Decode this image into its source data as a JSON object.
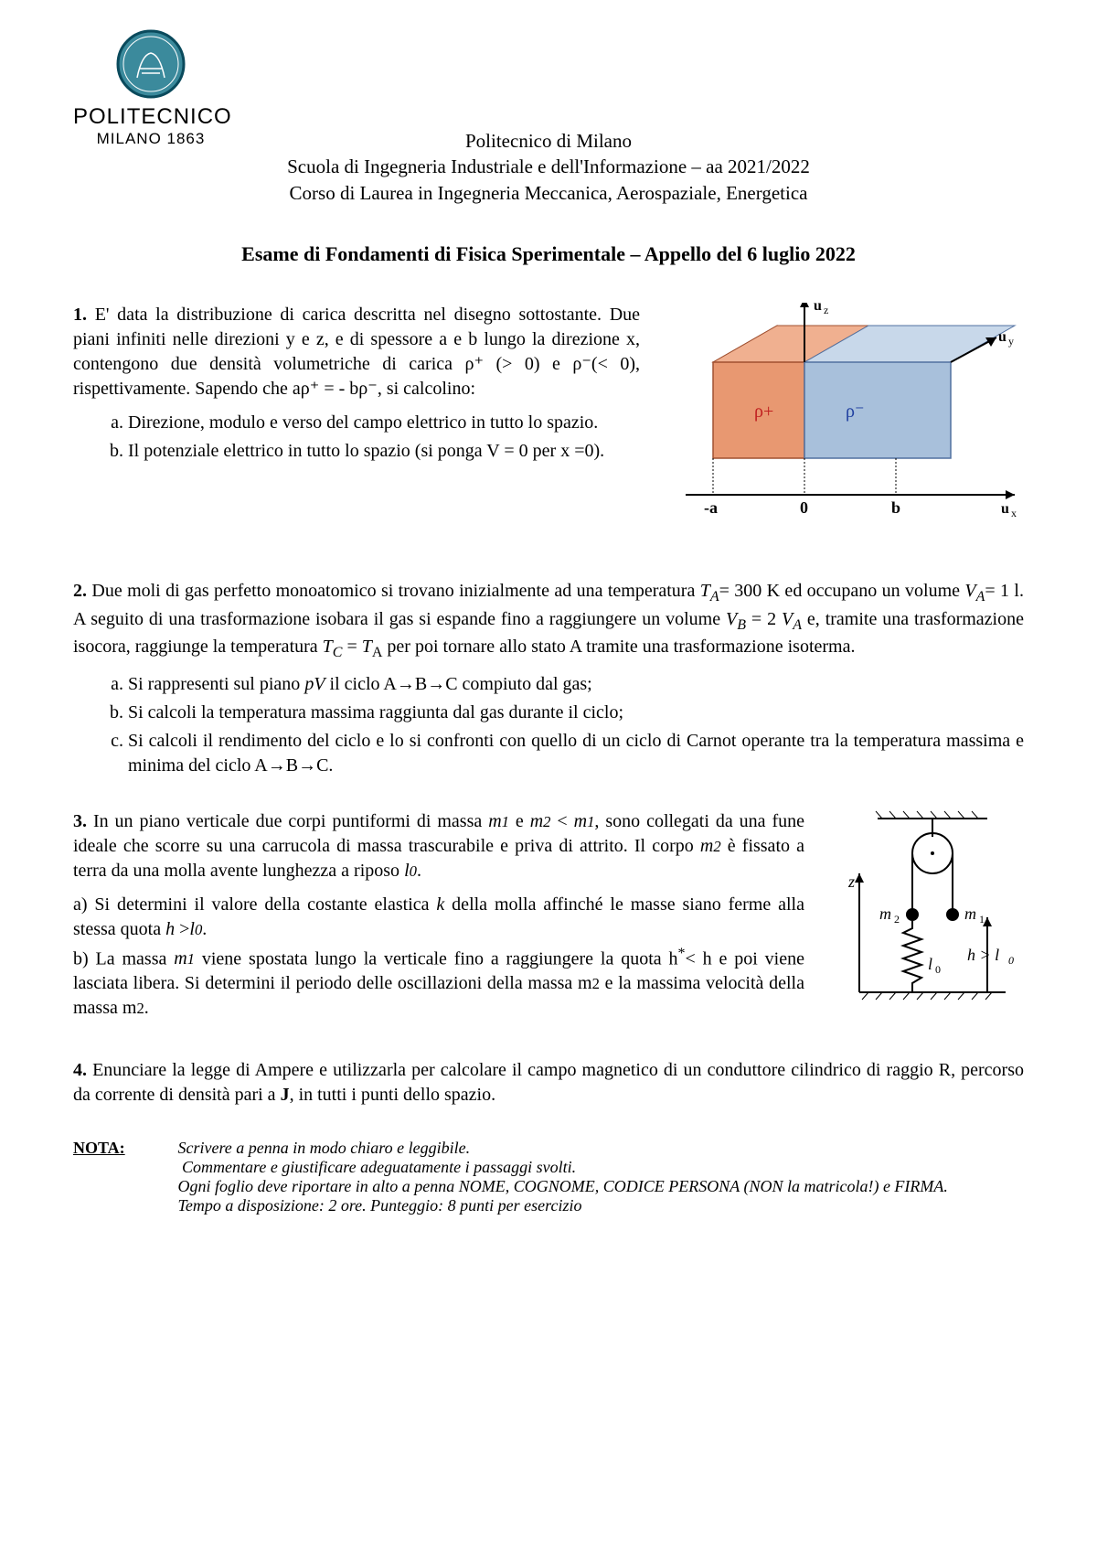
{
  "logo": {
    "title": "POLITECNICO",
    "subtitle": "MILANO 1863",
    "seal_color": "#3b8a9c",
    "seal_border": "#0a4a5c"
  },
  "header": {
    "line1": "Politecnico di Milano",
    "line2": "Scuola di Ingegneria Industriale e dell'Informazione – aa 2021/2022",
    "line3": "Corso di Laurea in Ingegneria Meccanica, Aerospaziale, Energetica"
  },
  "exam_title": "Esame di Fondamenti di Fisica Sperimentale – Appello del 6 luglio 2022",
  "p1": {
    "num": "1.",
    "body": "E' data la distribuzione di carica descritta nel disegno sottostante. Due piani infiniti nelle direzioni y e z, e di spessore a e b lungo la direzione x, contengono due densità volumetriche di carica ρ⁺ (> 0) e ρ⁻(< 0), rispettivamente. Sapendo che  aρ⁺ = - bρ⁻, si calcolino:",
    "a": "Direzione, modulo e verso del campo elettrico in tutto lo spazio.",
    "b": "Il potenziale elettrico in tutto lo spazio (si ponga V = 0 per x =0)."
  },
  "p1_fig": {
    "slab_a": {
      "fill": "#e89871",
      "stroke": "#a05030",
      "label": "ρ+",
      "label_color": "#c02020"
    },
    "slab_b": {
      "fill": "#a8c0db",
      "stroke": "#5070a0",
      "label": "ρ⁻",
      "label_color": "#2040a0"
    },
    "axis_labels": {
      "uz": "u_z",
      "uy": "u_y",
      "ux": "u_x"
    },
    "ticks": {
      "neg_a": "-a",
      "zero": "0",
      "b": "b"
    }
  },
  "p2": {
    "num": "2.",
    "body_html": "Due moli di gas perfetto monoatomico si trovano inizialmente ad una temperatura <i>T<sub>A</sub></i>= 300 K ed occupano un volume <i>V<sub>A</sub></i>= 1 l. A seguito di una trasformazione isobara il gas si espande fino a raggiungere un volume <i>V<sub>B</sub></i> = 2 <i>V<sub>A</sub></i> e, tramite una trasformazione isocora, raggiunge la temperatura <i>T<sub>C</sub></i> = <i>T</i><sub>A</sub> per poi tornare allo stato A tramite una trasformazione isoterma.",
    "a": "Si rappresenti sul piano <i>pV</i> il ciclo A→B→C compiuto dal gas;",
    "b": "Si calcoli la temperatura massima raggiunta dal gas durante il ciclo;",
    "c": "Si calcoli il rendimento del ciclo e lo si confronti con quello di un ciclo di Carnot operante tra la temperatura massima e minima del ciclo A→B→C."
  },
  "p3": {
    "num": "3.",
    "body_html": "In un piano verticale due corpi puntiformi di massa <i>m<small>1</small></i> e <i>m<small>2</small></i> < <i>m<small>1</small></i>, sono collegati da una fune ideale che scorre su una carrucola di massa trascurabile e priva di attrito. Il corpo <i>m<small>2</small></i> è fissato a terra da una molla avente lunghezza a riposo <i>l<small>0</small></i>.",
    "part_a_html": "a) Si determini il valore della costante elastica <i>k</i> della molla affinché le masse siano ferme alla stessa quota <i>h</i> ><i>l<small>0</small></i>.",
    "part_b_html": "b) La massa <i>m<small>1</small></i> viene spostata lungo la verticale fino a raggiungere la quota h<sup>*</sup>< h e poi viene lasciata libera. Si determini il periodo delle oscillazioni della massa m<small>2</small> e la massima velocità della massa m<small>2</small>."
  },
  "p3_fig": {
    "labels": {
      "z": "z",
      "m1": "m₁",
      "m2": "m₂",
      "l0": "l₀",
      "h": "h > l₀"
    }
  },
  "p4": {
    "num": "4.",
    "body_html": "Enunciare la legge di Ampere e utilizzarla per calcolare il campo magnetico di un conduttore cilindrico di raggio R, percorso da corrente di densità pari a <b>J</b>, in tutti i punti dello spazio."
  },
  "nota": {
    "label": "NOTA:",
    "line1": "Scrivere a penna in modo chiaro e leggibile.",
    "line2": "Commentare e giustificare adeguatamente i passaggi svolti.",
    "line3": "Ogni foglio deve riportare in alto a penna NOME, COGNOME, CODICE PERSONA (NON la matricola!) e FIRMA.",
    "line4": "Tempo a disposizione: 2 ore. Punteggio: 8 punti per esercizio"
  }
}
